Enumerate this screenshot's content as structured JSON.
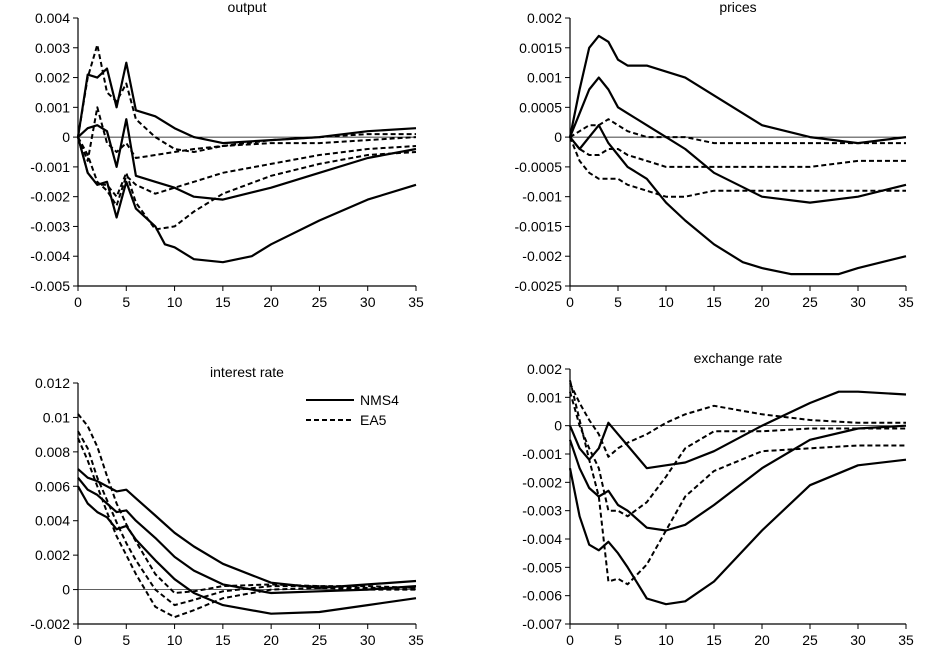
{
  "chart_data": [
    {
      "type": "line",
      "title": "output",
      "xlim": [
        0,
        35
      ],
      "ylim": [
        -0.005,
        0.004
      ],
      "xticks": [
        "0",
        "5",
        "10",
        "15",
        "20",
        "25",
        "30",
        "35"
      ],
      "yticks": [
        "0.004",
        "0.003",
        "0.002",
        "0.001",
        "0",
        "-0.001",
        "-0.002",
        "-0.003",
        "-0.004",
        "-0.005"
      ],
      "zero_line": true,
      "series": [
        {
          "style": "solid",
          "x": [
            0,
            1,
            2,
            3,
            4,
            5,
            6,
            8,
            10,
            12,
            15,
            20,
            25,
            30,
            35
          ],
          "y": [
            0,
            0.0021,
            0.002,
            0.0023,
            0.001,
            0.0025,
            0.0009,
            0.0007,
            0.0003,
            0,
            -0.0002,
            -0.0001,
            0,
            0.0002,
            0.0003
          ]
        },
        {
          "style": "solid",
          "x": [
            0,
            1,
            2,
            3,
            4,
            5,
            6,
            8,
            10,
            12,
            15,
            20,
            25,
            30,
            35
          ],
          "y": [
            0,
            0.0003,
            0.0004,
            0.0002,
            -0.001,
            0.0006,
            -0.0013,
            -0.0015,
            -0.0017,
            -0.002,
            -0.0021,
            -0.0017,
            -0.0012,
            -0.0007,
            -0.0004
          ]
        },
        {
          "style": "solid",
          "x": [
            0,
            1,
            2,
            3,
            4,
            5,
            6,
            8,
            9,
            10,
            12,
            15,
            18,
            20,
            25,
            30,
            35
          ],
          "y": [
            0,
            -0.0012,
            -0.0016,
            -0.0015,
            -0.0027,
            -0.0015,
            -0.0024,
            -0.003,
            -0.0036,
            -0.0037,
            -0.0041,
            -0.0042,
            -0.004,
            -0.0036,
            -0.0028,
            -0.0021,
            -0.0016
          ]
        },
        {
          "style": "dashed",
          "x": [
            0,
            1,
            2,
            3,
            4,
            5,
            6,
            8,
            10,
            12,
            15,
            20,
            25,
            30,
            35
          ],
          "y": [
            0,
            0.002,
            0.0031,
            0.0015,
            0.0012,
            0.0018,
            0.0006,
            0,
            -0.0004,
            -0.0005,
            -0.0003,
            -0.0001,
            0,
            0.0001,
            0.0001
          ]
        },
        {
          "style": "dashed",
          "x": [
            0,
            1,
            2,
            3,
            4,
            5,
            6,
            8,
            10,
            12,
            15,
            20,
            25,
            30,
            35
          ],
          "y": [
            0,
            -0.0008,
            0.001,
            -0.0002,
            -0.0005,
            -0.0002,
            -0.0007,
            -0.0006,
            -0.0005,
            -0.0004,
            -0.0003,
            -0.0002,
            -0.0002,
            -0.0001,
            0
          ]
        },
        {
          "style": "dashed",
          "x": [
            0,
            1,
            2,
            3,
            4,
            5,
            6,
            8,
            10,
            12,
            15,
            20,
            25,
            30,
            35
          ],
          "y": [
            0,
            -0.0006,
            -0.0015,
            -0.0018,
            -0.0023,
            -0.0013,
            -0.0016,
            -0.0019,
            -0.0017,
            -0.0015,
            -0.0012,
            -0.0009,
            -0.0006,
            -0.0004,
            -0.0003
          ]
        },
        {
          "style": "dashed",
          "x": [
            0,
            1,
            2,
            3,
            4,
            5,
            6,
            8,
            10,
            12,
            15,
            20,
            25,
            30,
            35
          ],
          "y": [
            0,
            -0.0012,
            -0.0016,
            -0.0016,
            -0.002,
            -0.0012,
            -0.0022,
            -0.0031,
            -0.003,
            -0.0025,
            -0.0019,
            -0.0013,
            -0.0009,
            -0.0006,
            -0.0005
          ]
        }
      ]
    },
    {
      "type": "line",
      "title": "prices",
      "xlim": [
        0,
        35
      ],
      "ylim": [
        -0.0025,
        0.002
      ],
      "xticks": [
        "0",
        "5",
        "10",
        "15",
        "20",
        "25",
        "30",
        "35"
      ],
      "yticks": [
        "0.002",
        "0.0015",
        "0.001",
        "0.0005",
        "0",
        "-0.0005",
        "-0.001",
        "-0.0015",
        "-0.002",
        "-0.0025"
      ],
      "zero_line": true,
      "series": [
        {
          "style": "solid",
          "x": [
            0,
            1,
            2,
            3,
            4,
            5,
            6,
            8,
            10,
            12,
            15,
            20,
            25,
            30,
            35
          ],
          "y": [
            0,
            0.0008,
            0.0015,
            0.0017,
            0.0016,
            0.0013,
            0.0012,
            0.0012,
            0.0011,
            0.001,
            0.0007,
            0.0002,
            0,
            -0.0001,
            0
          ]
        },
        {
          "style": "solid",
          "x": [
            0,
            1,
            2,
            3,
            4,
            5,
            6,
            8,
            10,
            12,
            15,
            20,
            25,
            30,
            35
          ],
          "y": [
            0,
            0.0004,
            0.0008,
            0.001,
            0.0008,
            0.0005,
            0.0004,
            0.0002,
            0,
            -0.0002,
            -0.0006,
            -0.001,
            -0.0011,
            -0.001,
            -0.0008
          ]
        },
        {
          "style": "solid",
          "x": [
            0,
            1,
            2,
            3,
            4,
            5,
            6,
            8,
            10,
            12,
            15,
            18,
            20,
            23,
            25,
            28,
            30,
            35
          ],
          "y": [
            0,
            -0.0002,
            0,
            0.0002,
            -0.0001,
            -0.0003,
            -0.0005,
            -0.0007,
            -0.0011,
            -0.0014,
            -0.0018,
            -0.0021,
            -0.0022,
            -0.0023,
            -0.0023,
            -0.0023,
            -0.0022,
            -0.002
          ]
        },
        {
          "style": "dashed",
          "x": [
            0,
            1,
            2,
            3,
            4,
            5,
            6,
            8,
            10,
            12,
            15,
            20,
            25,
            30,
            35
          ],
          "y": [
            0,
            0.0001,
            0.0002,
            0.0002,
            0.0003,
            0.0002,
            0.0001,
            0,
            0,
            0,
            -0.0001,
            -0.0001,
            -0.0001,
            -0.0001,
            -0.0001
          ]
        },
        {
          "style": "dashed",
          "x": [
            0,
            1,
            2,
            3,
            4,
            5,
            6,
            8,
            10,
            12,
            15,
            20,
            25,
            30,
            35
          ],
          "y": [
            0,
            -0.0002,
            -0.0003,
            -0.0003,
            -0.0002,
            -0.0002,
            -0.0003,
            -0.0004,
            -0.0005,
            -0.0005,
            -0.0005,
            -0.0005,
            -0.0005,
            -0.0004,
            -0.0004
          ]
        },
        {
          "style": "dashed",
          "x": [
            0,
            1,
            2,
            3,
            4,
            5,
            6,
            8,
            10,
            12,
            15,
            20,
            25,
            30,
            35
          ],
          "y": [
            0,
            -0.0004,
            -0.0006,
            -0.0007,
            -0.0007,
            -0.0007,
            -0.0008,
            -0.0009,
            -0.001,
            -0.001,
            -0.0009,
            -0.0009,
            -0.0009,
            -0.0009,
            -0.0009
          ]
        }
      ]
    },
    {
      "type": "line",
      "title": "interest rate",
      "xlim": [
        0,
        35
      ],
      "ylim": [
        -0.002,
        0.012
      ],
      "xticks": [
        "0",
        "5",
        "10",
        "15",
        "20",
        "25",
        "30",
        "35"
      ],
      "yticks": [
        "0.012",
        "0.01",
        "0.008",
        "0.006",
        "0.004",
        "0.002",
        "0",
        "-0.002"
      ],
      "zero_line": true,
      "legend": {
        "position": "top-right",
        "entries": [
          {
            "label": "NMS4",
            "style": "solid"
          },
          {
            "label": "EA5",
            "style": "dashed"
          }
        ]
      },
      "series": [
        {
          "style": "solid",
          "x": [
            0,
            1,
            2,
            3,
            4,
            5,
            6,
            8,
            10,
            12,
            15,
            20,
            25,
            30,
            35
          ],
          "y": [
            0.007,
            0.0065,
            0.0063,
            0.006,
            0.0057,
            0.0058,
            0.0053,
            0.0043,
            0.0033,
            0.0025,
            0.0015,
            0.0004,
            0.0001,
            0.0003,
            0.0005
          ]
        },
        {
          "style": "solid",
          "x": [
            0,
            1,
            2,
            3,
            4,
            5,
            6,
            8,
            10,
            12,
            15,
            20,
            25,
            30,
            35
          ],
          "y": [
            0.0065,
            0.0058,
            0.0055,
            0.005,
            0.0045,
            0.0046,
            0.004,
            0.003,
            0.0019,
            0.0011,
            0.0003,
            -0.0002,
            -0.0001,
            0,
            0.0002
          ]
        },
        {
          "style": "solid",
          "x": [
            0,
            1,
            2,
            3,
            4,
            5,
            6,
            8,
            10,
            12,
            15,
            20,
            25,
            30,
            35
          ],
          "y": [
            0.006,
            0.005,
            0.0045,
            0.0042,
            0.0035,
            0.0037,
            0.0029,
            0.0017,
            0.0006,
            -0.0002,
            -0.0009,
            -0.0014,
            -0.0013,
            -0.0009,
            -0.0005
          ]
        },
        {
          "style": "dashed",
          "x": [
            0,
            1,
            2,
            3,
            4,
            5,
            6,
            8,
            10,
            12,
            15,
            20,
            25,
            30,
            35
          ],
          "y": [
            0.0102,
            0.0095,
            0.0083,
            0.0066,
            0.005,
            0.0038,
            0.0028,
            0.0009,
            -0.0002,
            -0.0001,
            0.0002,
            0.0003,
            0.0002,
            0.0002,
            0.0001
          ]
        },
        {
          "style": "dashed",
          "x": [
            0,
            1,
            2,
            3,
            4,
            5,
            6,
            8,
            10,
            12,
            15,
            20,
            25,
            30,
            35
          ],
          "y": [
            0.0092,
            0.0082,
            0.0065,
            0.0052,
            0.0039,
            0.0027,
            0.0017,
            0,
            -0.0009,
            -0.0006,
            -0.0001,
            0.0002,
            0.0002,
            0.0001,
            0.0001
          ]
        },
        {
          "style": "dashed",
          "x": [
            0,
            1,
            2,
            3,
            4,
            5,
            6,
            8,
            10,
            12,
            15,
            20,
            25,
            30,
            35
          ],
          "y": [
            0.0088,
            0.0075,
            0.006,
            0.0045,
            0.0031,
            0.002,
            0.0009,
            -0.001,
            -0.0016,
            -0.0012,
            -0.0005,
            0,
            0.0001,
            0,
            0
          ]
        }
      ]
    },
    {
      "type": "line",
      "title": "exchange rate",
      "xlim": [
        0,
        35
      ],
      "ylim": [
        -0.007,
        0.002
      ],
      "xticks": [
        "0",
        "5",
        "10",
        "15",
        "20",
        "25",
        "30",
        "35"
      ],
      "yticks": [
        "0.002",
        "0.001",
        "0",
        "-0.001",
        "-0.002",
        "-0.003",
        "-0.004",
        "-0.005",
        "-0.006",
        "-0.007"
      ],
      "zero_line": true,
      "series": [
        {
          "style": "solid",
          "x": [
            0,
            1,
            2,
            3,
            4,
            5,
            6,
            8,
            10,
            12,
            15,
            20,
            25,
            28,
            30,
            35
          ],
          "y": [
            0,
            -0.0008,
            -0.0012,
            -0.0008,
            0.0001,
            -0.0003,
            -0.0007,
            -0.0015,
            -0.0014,
            -0.0013,
            -0.0009,
            0,
            0.0008,
            0.0012,
            0.0012,
            0.0011
          ]
        },
        {
          "style": "solid",
          "x": [
            0,
            1,
            2,
            3,
            4,
            5,
            6,
            8,
            10,
            12,
            15,
            20,
            25,
            30,
            35
          ],
          "y": [
            -0.0005,
            -0.0015,
            -0.0022,
            -0.0025,
            -0.0023,
            -0.0028,
            -0.003,
            -0.0036,
            -0.0037,
            -0.0035,
            -0.0028,
            -0.0015,
            -0.0005,
            -0.0001,
            0
          ]
        },
        {
          "style": "solid",
          "x": [
            0,
            1,
            2,
            3,
            4,
            5,
            6,
            8,
            10,
            12,
            15,
            20,
            25,
            30,
            35
          ],
          "y": [
            -0.0015,
            -0.0032,
            -0.0042,
            -0.0044,
            -0.0041,
            -0.0045,
            -0.005,
            -0.0061,
            -0.0063,
            -0.0062,
            -0.0055,
            -0.0037,
            -0.0021,
            -0.0014,
            -0.0012
          ]
        },
        {
          "style": "dashed",
          "x": [
            0,
            1,
            2,
            3,
            4,
            5,
            6,
            8,
            10,
            12,
            15,
            20,
            25,
            30,
            35
          ],
          "y": [
            0.0015,
            0.0008,
            0.0002,
            -0.0003,
            -0.0011,
            -0.0008,
            -0.0006,
            -0.0003,
            0.0001,
            0.0004,
            0.0007,
            0.0004,
            0.0002,
            0.0001,
            0.0001
          ]
        },
        {
          "style": "dashed",
          "x": [
            0,
            1,
            2,
            3,
            4,
            5,
            6,
            8,
            10,
            12,
            15,
            20,
            25,
            30,
            35
          ],
          "y": [
            0.0012,
            0,
            -0.0008,
            -0.0015,
            -0.003,
            -0.003,
            -0.0032,
            -0.0027,
            -0.0018,
            -0.0008,
            -0.0002,
            -0.0002,
            -0.0001,
            -0.0001,
            -0.0001
          ]
        },
        {
          "style": "dashed",
          "x": [
            0,
            1,
            2,
            3,
            4,
            5,
            6,
            8,
            10,
            12,
            15,
            20,
            25,
            30,
            35
          ],
          "y": [
            0.0016,
            0.0002,
            -0.0012,
            -0.0025,
            -0.0055,
            -0.0054,
            -0.0056,
            -0.0049,
            -0.0037,
            -0.0025,
            -0.0016,
            -0.0009,
            -0.0008,
            -0.0007,
            -0.0007
          ]
        }
      ]
    }
  ]
}
